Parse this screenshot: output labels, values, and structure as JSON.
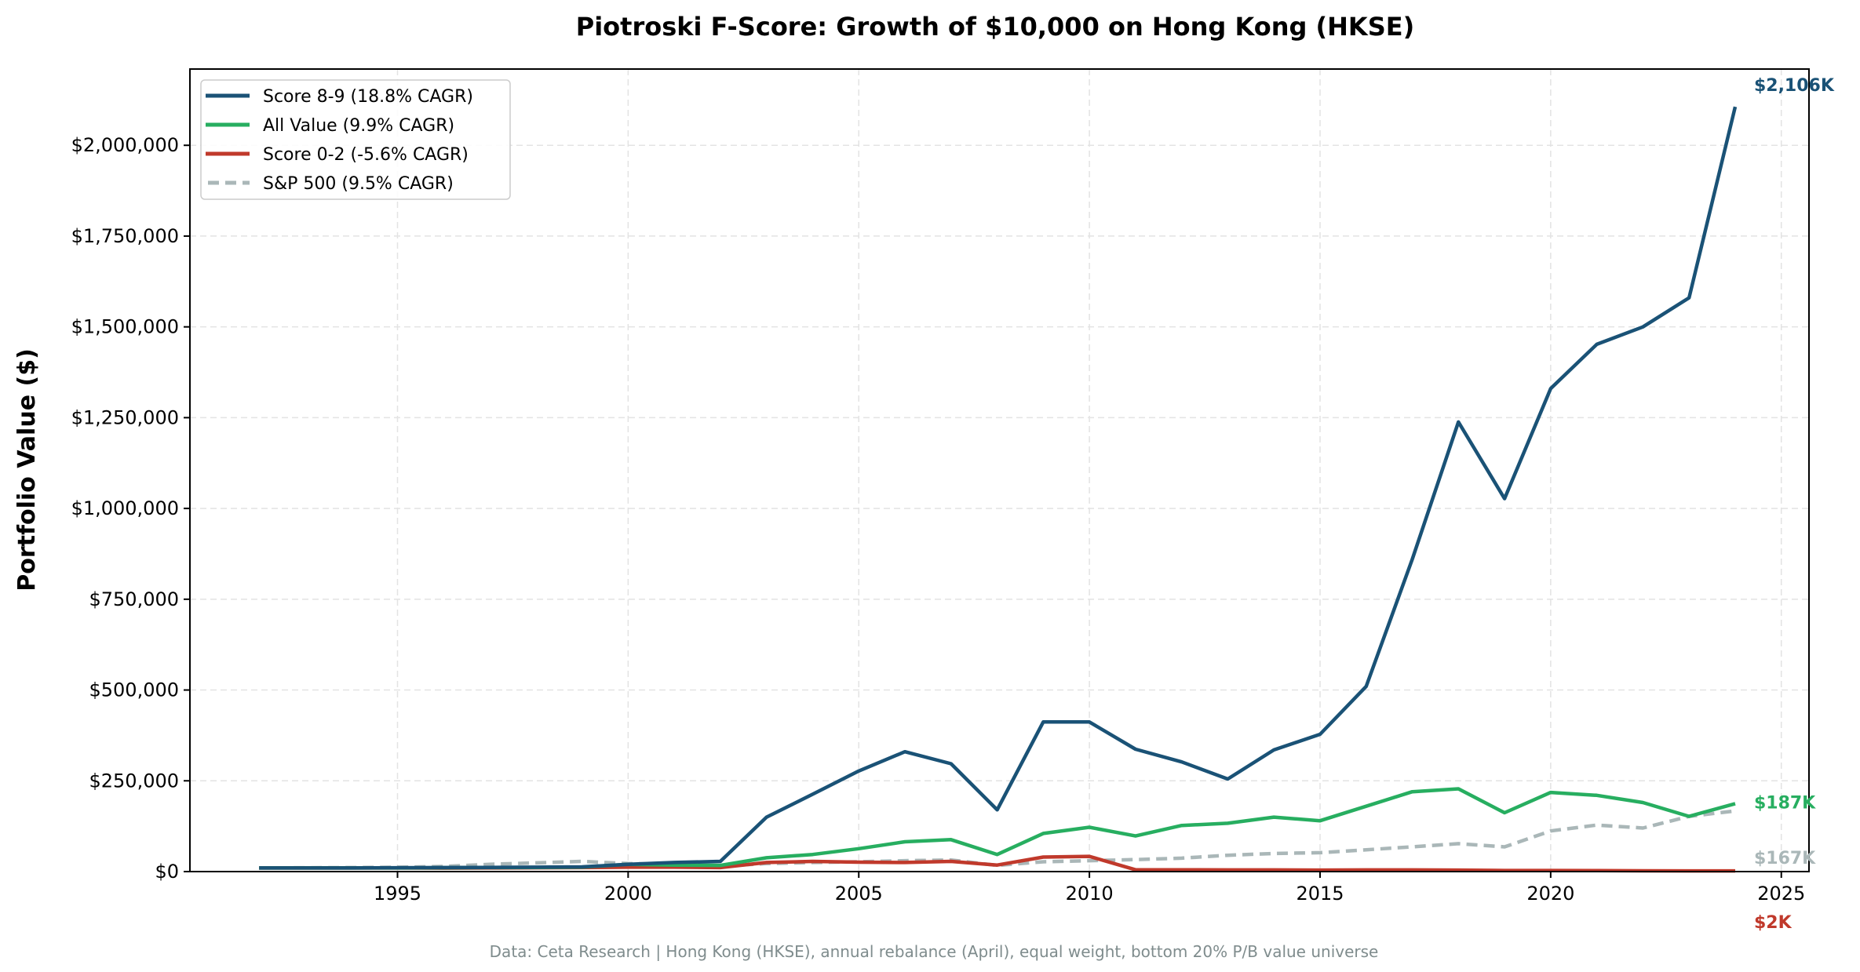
{
  "chart_data": {
    "type": "line",
    "title": "Piotroski F-Score: Growth of $10,000 on Hong Kong (HKSE)",
    "xlabel": "",
    "ylabel": "Portfolio Value ($)",
    "xlim": [
      1990.5,
      2025.6
    ],
    "ylim": [
      0,
      2210000
    ],
    "x_ticks": [
      "1995",
      "2000",
      "2005",
      "2010",
      "2015",
      "2020",
      "2025"
    ],
    "y_ticks": [
      "$0",
      "$250,000",
      "$500,000",
      "$750,000",
      "$1,000,000",
      "$1,250,000",
      "$1,500,000",
      "$1,750,000",
      "$2,000,000"
    ],
    "grid": true,
    "legend_position": "top-left",
    "x": [
      1992,
      1993,
      1994,
      1995,
      1996,
      1997,
      1998,
      1999,
      2000,
      2001,
      2002,
      2003,
      2004,
      2005,
      2006,
      2007,
      2008,
      2009,
      2010,
      2011,
      2012,
      2013,
      2014,
      2015,
      2016,
      2017,
      2018,
      2019,
      2020,
      2021,
      2022,
      2023,
      2024
    ],
    "series": [
      {
        "name": "Score 8-9 (18.8% CAGR)",
        "color": "#1a5276",
        "dashed": false,
        "end_label": "$2,106K",
        "values": [
          10000,
          10000,
          10000,
          10500,
          11000,
          11500,
          12000,
          13000,
          20000,
          25000,
          28000,
          150000,
          213000,
          277000,
          330000,
          297000,
          170000,
          412000,
          412000,
          337000,
          302000,
          255000,
          335000,
          378000,
          510000,
          860000,
          1238000,
          1027000,
          1330000,
          1452000,
          1500000,
          1580000,
          2106000
        ]
      },
      {
        "name": "All Value (9.9% CAGR)",
        "color": "#27ae60",
        "dashed": false,
        "end_label": "$187K",
        "values": [
          10000,
          10000,
          10000,
          10000,
          10500,
          11000,
          11500,
          12000,
          20000,
          18000,
          17000,
          38000,
          47000,
          63000,
          82000,
          88000,
          47000,
          105000,
          122000,
          98000,
          127000,
          133000,
          150000,
          140000,
          180000,
          220000,
          228000,
          162000,
          218000,
          210000,
          190000,
          152000,
          187000
        ]
      },
      {
        "name": "Score 0-2 (-5.6% CAGR)",
        "color": "#c0392b",
        "dashed": false,
        "end_label": "$2K",
        "values": [
          10000,
          10000,
          10000,
          10000,
          9500,
          10000,
          10500,
          11000,
          12000,
          12000,
          11000,
          25000,
          28000,
          26000,
          25000,
          28000,
          18000,
          40000,
          42000,
          5000,
          5000,
          4500,
          4500,
          4000,
          4500,
          4500,
          4000,
          3000,
          3000,
          2500,
          2200,
          2000,
          2000
        ]
      },
      {
        "name": "S&P 500 (9.5% CAGR)",
        "color": "#aab7b8",
        "dashed": true,
        "end_label": "$167K",
        "values": [
          10000,
          10500,
          11000,
          12000,
          14000,
          20000,
          24000,
          28000,
          22000,
          20000,
          15000,
          22000,
          25000,
          27000,
          30000,
          32000,
          17000,
          27000,
          30000,
          33000,
          37000,
          45000,
          50000,
          52000,
          60000,
          68000,
          77000,
          68000,
          112000,
          128000,
          120000,
          152000,
          167000
        ]
      }
    ],
    "footnote": "Data: Ceta Research | Hong Kong (HKSE), annual rebalance (April), equal weight, bottom 20% P/B value universe"
  }
}
